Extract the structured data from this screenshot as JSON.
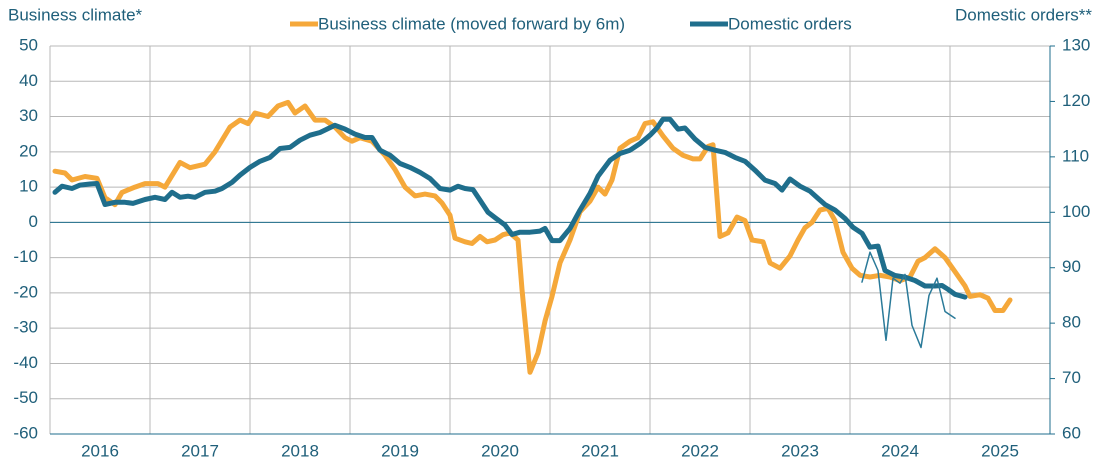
{
  "chart_data": {
    "type": "line",
    "y_title": "Business climate*",
    "y2_title": "Domestic orders**",
    "xlim": [
      2016,
      2026
    ],
    "xticks": [
      2017,
      2018,
      2019,
      2020,
      2021,
      2022,
      2023,
      2024,
      2025
    ],
    "year_labels": [
      "2016",
      "2017",
      "2018",
      "2019",
      "2020",
      "2021",
      "2022",
      "2023",
      "2024",
      "2025"
    ],
    "ylim": [
      -60,
      50
    ],
    "yticks": [
      50,
      40,
      30,
      20,
      10,
      0,
      -10,
      -20,
      -30,
      -40,
      -50,
      -60
    ],
    "y2lim": [
      60,
      130
    ],
    "y2ticks": [
      130,
      120,
      110,
      100,
      90,
      80,
      70,
      60
    ],
    "grid": true,
    "zero_line_color": "#1f6e8c",
    "series": [
      {
        "name": "Business climate (moved forward by 6m)",
        "color": "#f5a83a",
        "width": 5,
        "x": [
          2016.05,
          2016.15,
          2016.22,
          2016.35,
          2016.47,
          2016.55,
          2016.65,
          2016.72,
          2016.85,
          2016.95,
          2017.08,
          2017.15,
          2017.3,
          2017.4,
          2017.55,
          2017.65,
          2017.8,
          2017.9,
          2017.98,
          2018.05,
          2018.18,
          2018.28,
          2018.38,
          2018.45,
          2018.55,
          2018.65,
          2018.75,
          2018.85,
          2018.95,
          2019.02,
          2019.1,
          2019.22,
          2019.35,
          2019.45,
          2019.55,
          2019.65,
          2019.75,
          2019.85,
          2019.92,
          2020.0,
          2020.05,
          2020.15,
          2020.22,
          2020.3,
          2020.37,
          2020.45,
          2020.53,
          2020.6,
          2020.68,
          2020.72,
          2020.8,
          2020.88,
          2020.95,
          2021.02,
          2021.1,
          2021.2,
          2021.3,
          2021.4,
          2021.48,
          2021.55,
          2021.62,
          2021.7,
          2021.8,
          2021.88,
          2021.95,
          2022.03,
          2022.13,
          2022.23,
          2022.33,
          2022.43,
          2022.5,
          2022.58,
          2022.63,
          2022.7,
          2022.78,
          2022.87,
          2022.95,
          2023.02,
          2023.13,
          2023.2,
          2023.3,
          2023.4,
          2023.48,
          2023.55,
          2023.62,
          2023.7,
          2023.78,
          2023.85,
          2023.93,
          2024.02,
          2024.1,
          2024.2,
          2024.3,
          2024.4,
          2024.5,
          2024.6,
          2024.68,
          2024.75,
          2024.85,
          2024.95,
          2025.05,
          2025.15,
          2025.2,
          2025.3,
          2025.38,
          2025.45,
          2025.53,
          2025.6
        ],
        "values": [
          14.5,
          14,
          12,
          13,
          12.5,
          7,
          5,
          8.5,
          10,
          11,
          11,
          10,
          17,
          15.5,
          16.5,
          20,
          27,
          29,
          28,
          31,
          30,
          33,
          34,
          31,
          33,
          29,
          29,
          27,
          24,
          23,
          24,
          23,
          19,
          15,
          10,
          7.5,
          8,
          7.5,
          5.5,
          2,
          -4.5,
          -5.5,
          -6,
          -4,
          -5.5,
          -5,
          -3.5,
          -3,
          -5,
          -19,
          -42.5,
          -37,
          -28,
          -21,
          -11.5,
          -5,
          3,
          6,
          10,
          8,
          12,
          21,
          23,
          24,
          28,
          28.5,
          24.5,
          21,
          19,
          18,
          18,
          21.5,
          22,
          -4,
          -3,
          1.5,
          0.5,
          -5,
          -5.5,
          -11.5,
          -13,
          -9.5,
          -5,
          -1.5,
          0,
          3.5,
          4,
          0.5,
          -8.5,
          -13,
          -15,
          -15.5,
          -15,
          -15.5,
          -16.5,
          -15.5,
          -11,
          -10,
          -7.5,
          -10,
          -14,
          -18,
          -21,
          -20.5,
          -21.5,
          -25,
          -25,
          -22
        ]
      },
      {
        "name": "Domestic orders",
        "color": "#1f6e8c",
        "width": 5,
        "axis": "y2",
        "x": [
          2016.05,
          2016.12,
          2016.22,
          2016.3,
          2016.4,
          2016.47,
          2016.55,
          2016.65,
          2016.75,
          2016.83,
          2016.95,
          2017.05,
          2017.15,
          2017.22,
          2017.3,
          2017.38,
          2017.45,
          2017.55,
          2017.65,
          2017.72,
          2017.82,
          2017.9,
          2018.0,
          2018.1,
          2018.2,
          2018.3,
          2018.4,
          2018.5,
          2018.6,
          2018.7,
          2018.85,
          2018.95,
          2019.05,
          2019.15,
          2019.22,
          2019.3,
          2019.4,
          2019.5,
          2019.6,
          2019.7,
          2019.8,
          2019.9,
          2020.0,
          2020.08,
          2020.15,
          2020.23,
          2020.3,
          2020.38,
          2020.46,
          2020.55,
          2020.62,
          2020.7,
          2020.8,
          2020.9,
          2020.95,
          2021.02,
          2021.1,
          2021.2,
          2021.3,
          2021.4,
          2021.48,
          2021.6,
          2021.7,
          2021.8,
          2021.9,
          2022.0,
          2022.07,
          2022.13,
          2022.2,
          2022.28,
          2022.35,
          2022.45,
          2022.55,
          2022.65,
          2022.75,
          2022.85,
          2022.95,
          2023.05,
          2023.15,
          2023.25,
          2023.32,
          2023.4,
          2023.5,
          2023.6,
          2023.68,
          2023.75,
          2023.85,
          2023.95,
          2024.03,
          2024.12,
          2024.2,
          2024.28,
          2024.35,
          2024.45,
          2024.55,
          2024.65,
          2024.75,
          2024.85,
          2024.92,
          2024.98,
          2025.05,
          2025.15
        ],
        "values": [
          103.6,
          104.7,
          104.3,
          104.9,
          105.1,
          105.2,
          101.4,
          101.8,
          101.8,
          101.6,
          102.3,
          102.7,
          102.3,
          103.6,
          102.7,
          102.9,
          102.7,
          103.6,
          103.8,
          104.3,
          105.4,
          106.7,
          108.1,
          109.2,
          109.9,
          111.5,
          111.7,
          113,
          113.9,
          114.4,
          115.7,
          115,
          114.1,
          113.5,
          113.5,
          111.2,
          110.3,
          108.8,
          108.1,
          107.2,
          106.1,
          104.3,
          104,
          104.7,
          104.3,
          104.1,
          102.2,
          100,
          98.9,
          97.7,
          96,
          96.4,
          96.4,
          96.6,
          97.1,
          94.9,
          94.9,
          97.1,
          100.4,
          103.4,
          106.5,
          109.4,
          110.6,
          111.2,
          112.4,
          113.9,
          115.2,
          116.8,
          116.8,
          115,
          115.2,
          113.2,
          111.7,
          111.2,
          110.8,
          109.9,
          109.2,
          107.6,
          105.8,
          105.2,
          104,
          106,
          104.7,
          103.8,
          102.5,
          101.4,
          100.4,
          98.9,
          97.3,
          96.2,
          93.7,
          93.9,
          89.5,
          88.6,
          88.3,
          87.7,
          86.7,
          86.7,
          86.8,
          86.1,
          85.2,
          84.7
        ]
      },
      {
        "color": "#2a7a99",
        "width": 1.5,
        "axis": "y2",
        "x": [
          2024.12,
          2024.2,
          2024.28,
          2024.36,
          2024.43,
          2024.5,
          2024.55,
          2024.62,
          2024.71,
          2024.79,
          2024.87,
          2024.95,
          2025.05
        ],
        "values": [
          87.4,
          92.8,
          89.5,
          76.9,
          88.1,
          87.2,
          88.8,
          79.6,
          75.6,
          85,
          88.1,
          82.1,
          80.9
        ]
      }
    ]
  }
}
